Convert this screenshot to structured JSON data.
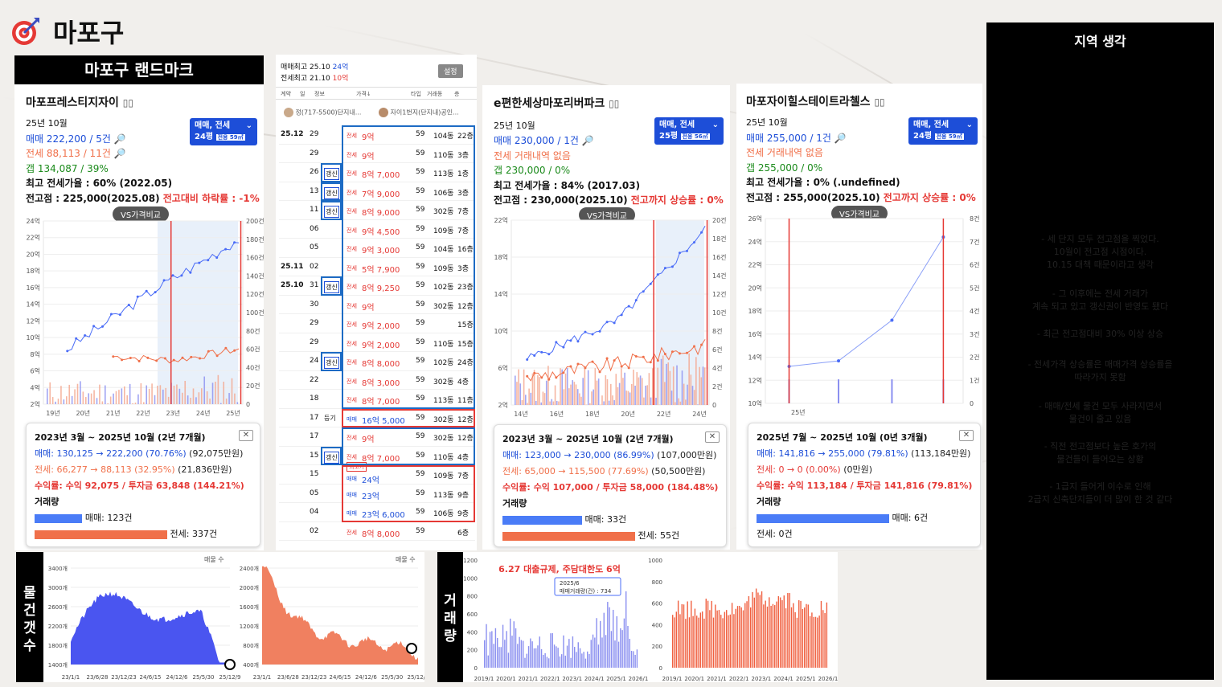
{
  "page": {
    "title": "마포구",
    "landmark_header": "마포구 랜드마크",
    "icon": "target-icon"
  },
  "colors": {
    "accent": "#1d4ed8",
    "sale": "#4a6cf7",
    "jeonse": "#f0704a",
    "up": "#e53935",
    "gap": "#1a8a1a"
  },
  "apt1": {
    "name": "마포프레스티지자이",
    "month": "25년 10월",
    "sale": "매매 222,200 / 5건",
    "jeonse": "전세 88,113 / 11건",
    "gap": "갭    134,087 / 39%",
    "max_ratio": "최고 전세가율 : 60% (2022.05)",
    "prev_high": "전고점 : 225,000(2025.08)",
    "prev_high_diff": "전고대비 하락률 : -1%",
    "selector_top": "매매, 전세",
    "selector_pyeong": "24평",
    "selector_area": "전용 59㎡",
    "vs_button": "VS가격비교",
    "y_left": [
      "24억",
      "22억",
      "20억",
      "18억",
      "16억",
      "14억",
      "12억",
      "10억",
      "8억",
      "6억",
      "4억",
      "2억"
    ],
    "y_right": [
      "200건",
      "180건",
      "160건",
      "140건",
      "120건",
      "100건",
      "80건",
      "60건",
      "40건",
      "20건",
      "0"
    ],
    "x_ticks": [
      "19년",
      "20년",
      "21년",
      "22년",
      "23년",
      "24년",
      "25년"
    ],
    "summary": {
      "period": "2023년 3월 ~ 2025년 10월 (2년 7개월)",
      "sale": "매매: 130,125 → 222,200 (70.76%)",
      "sale_diff": "(92,075만원)",
      "jeonse": "전세: 66,277 → 88,113 (32.95%)",
      "jeonse_diff": "(21,836만원)",
      "profit": "수익률: 수익 92,075 / 투자금 63,848 (144.21%)",
      "volume_label": "거래량",
      "sale_count": "매매: 123건",
      "jeonse_count": "전세: 337건",
      "sale_bar_fraction": 0.36,
      "jeonse_bar_fraction": 1.0
    }
  },
  "trades": {
    "header_line1_label": "매매최고",
    "header_line1_date": "25.10",
    "header_line1_value": "24억",
    "header_line2_label": "전세최고",
    "header_line2_date": "21.10",
    "header_line2_value": "10억",
    "settings_button": "설정",
    "columns": [
      "계약",
      "일",
      "정보",
      "가격↓",
      "타입",
      "거래동",
      "층"
    ],
    "agent1": "정(717-5500)단지내...",
    "agent2": "자이1번지(단지내)공인...",
    "rows": [
      {
        "ym": "25.12",
        "d": "29",
        "info": "",
        "kind": "전세",
        "price": "9억",
        "type": "59",
        "dong": "104동",
        "floor": "22층",
        "box": "blue"
      },
      {
        "ym": "",
        "d": "29",
        "info": "",
        "kind": "전세",
        "price": "9억",
        "type": "59",
        "dong": "110동",
        "floor": "3층",
        "box": "blue"
      },
      {
        "ym": "",
        "d": "26",
        "info": "갱신",
        "kind": "전세",
        "price": "8억 7,000",
        "type": "59",
        "dong": "113동",
        "floor": "1층",
        "box": "blue"
      },
      {
        "ym": "",
        "d": "13",
        "info": "갱신",
        "kind": "전세",
        "price": "7억 9,000",
        "type": "59",
        "dong": "106동",
        "floor": "3층",
        "box": "blue"
      },
      {
        "ym": "",
        "d": "11",
        "info": "갱신",
        "kind": "전세",
        "price": "8억 9,000",
        "type": "59",
        "dong": "302동",
        "floor": "7층",
        "box": "blue"
      },
      {
        "ym": "",
        "d": "06",
        "info": "",
        "kind": "전세",
        "price": "9억 4,500",
        "type": "59",
        "dong": "109동",
        "floor": "7층",
        "box": "blue"
      },
      {
        "ym": "",
        "d": "05",
        "info": "",
        "kind": "전세",
        "price": "9억 3,000",
        "type": "59",
        "dong": "104동",
        "floor": "16층",
        "box": "blue"
      },
      {
        "ym": "25.11",
        "d": "02",
        "info": "",
        "kind": "전세",
        "price": "5억 7,900",
        "type": "59",
        "dong": "109동",
        "floor": "3층",
        "box": "blue"
      },
      {
        "ym": "25.10",
        "d": "31",
        "info": "갱신",
        "kind": "전세",
        "price": "8억 9,250",
        "type": "59",
        "dong": "102동",
        "floor": "23층",
        "box": "blue"
      },
      {
        "ym": "",
        "d": "30",
        "info": "",
        "kind": "전세",
        "price": "9억",
        "type": "59",
        "dong": "302동",
        "floor": "12층",
        "box": "blue"
      },
      {
        "ym": "",
        "d": "29",
        "info": "",
        "kind": "전세",
        "price": "9억 2,000",
        "type": "59",
        "dong": "",
        "floor": "15층",
        "box": "blue"
      },
      {
        "ym": "",
        "d": "29",
        "info": "",
        "kind": "전세",
        "price": "9억 2,000",
        "type": "59",
        "dong": "110동",
        "floor": "15층",
        "box": "blue"
      },
      {
        "ym": "",
        "d": "24",
        "info": "갱신",
        "kind": "전세",
        "price": "8억 8,000",
        "type": "59",
        "dong": "102동",
        "floor": "24층",
        "box": "blue"
      },
      {
        "ym": "",
        "d": "22",
        "info": "",
        "kind": "전세",
        "price": "8억 3,000",
        "type": "59",
        "dong": "302동",
        "floor": "4층",
        "box": "blue"
      },
      {
        "ym": "",
        "d": "18",
        "info": "",
        "kind": "전세",
        "price": "8억 7,000",
        "type": "59",
        "dong": "113동",
        "floor": "11층",
        "box": "blue"
      },
      {
        "ym": "",
        "d": "17",
        "info": "등기",
        "kind": "매매",
        "price": "16억 5,000",
        "type": "59",
        "dong": "302동",
        "floor": "12층",
        "box": "red"
      },
      {
        "ym": "",
        "d": "17",
        "info": "",
        "kind": "전세",
        "price": "9억",
        "type": "59",
        "dong": "302동",
        "floor": "12층",
        "box": "blue2"
      },
      {
        "ym": "",
        "d": "15",
        "info": "갱신",
        "kind": "전세",
        "price": "8억 7,000",
        "type": "59",
        "dong": "110동",
        "floor": "4층",
        "box": "blue2"
      },
      {
        "ym": "",
        "d": "15",
        "info": "",
        "kind": "매매",
        "price": "24억",
        "type": "59",
        "dong": "109동",
        "floor": "7층",
        "box": "red2",
        "badge": "최고가"
      },
      {
        "ym": "",
        "d": "05",
        "info": "",
        "kind": "매매",
        "price": "23억",
        "type": "59",
        "dong": "113동",
        "floor": "9층",
        "box": "red2"
      },
      {
        "ym": "",
        "d": "04",
        "info": "",
        "kind": "매매",
        "price": "23억 6,000",
        "type": "59",
        "dong": "106동",
        "floor": "9층",
        "box": "red2"
      },
      {
        "ym": "",
        "d": "02",
        "info": "",
        "kind": "전세",
        "price": "8억 8,000",
        "type": "59",
        "dong": "",
        "floor": "6층",
        "box": ""
      }
    ]
  },
  "apt2": {
    "name": "e편한세상마포리버파크",
    "month": "25년 10월",
    "sale": "매매 230,000 / 1건",
    "jeonse": "전세 거래내역 없음",
    "gap": "갭    230,000 / 0%",
    "max_ratio": "최고 전세가율 : 84% (2017.03)",
    "prev_high": "전고점 : 230,000(2025.10)",
    "prev_high_diff": "전고까지 상승률 : 0%",
    "selector_top": "매매, 전세",
    "selector_pyeong": "25평",
    "selector_area": "전용 56㎡",
    "vs_button": "VS가격비교",
    "y_left": [
      "22억",
      "18억",
      "14억",
      "10억",
      "6억",
      "2억"
    ],
    "y_right": [
      "20건",
      "18건",
      "16건",
      "14건",
      "12건",
      "10건",
      "8건",
      "6건",
      "4건",
      "2건",
      "0"
    ],
    "x_ticks": [
      "14년",
      "16년",
      "18년",
      "20년",
      "22년",
      "24년"
    ],
    "summary": {
      "period": "2023년 3월 ~ 2025년 10월 (2년 7개월)",
      "sale": "매매: 123,000 → 230,000 (86.99%)",
      "sale_diff": "(107,000만원)",
      "jeonse": "전세: 65,000 → 115,500 (77.69%)",
      "jeonse_diff": "(50,500만원)",
      "profit": "수익률: 수익 107,000 / 투자금 58,000 (184.48%)",
      "volume_label": "거래량",
      "sale_count": "매매: 33건",
      "jeonse_count": "전세: 55건",
      "sale_bar_fraction": 0.6,
      "jeonse_bar_fraction": 1.0
    }
  },
  "apt3": {
    "name": "마포자이힐스테이트라첼스",
    "month": "25년 10월",
    "sale": "매매 255,000 / 1건",
    "jeonse": "전세 거래내역 없음",
    "gap": "갭    255,000 / 0%",
    "max_ratio": "최고 전세가율 : 0% (.undefined)",
    "prev_high": "전고점 : 255,000(2025.10)",
    "prev_high_diff": "전고까지 상승률 : 0%",
    "selector_top": "매매, 전세",
    "selector_pyeong": "24평",
    "selector_area": "전용 59㎡",
    "vs_button": "VS가격비교",
    "y_left": [
      "26억",
      "24억",
      "22억",
      "20억",
      "18억",
      "16억",
      "14억",
      "12억",
      "10억"
    ],
    "y_right": [
      "8건",
      "7건",
      "6건",
      "5건",
      "4건",
      "3건",
      "2건",
      "1건",
      "0"
    ],
    "x_ticks": [
      "25년"
    ],
    "summary": {
      "period": "2025년 7월 ~ 2025년 10월 (0년 3개월)",
      "sale": "매매: 141,816 → 255,000 (79.81%)",
      "sale_diff": "(113,184만원)",
      "jeonse": "전세: 0 → 0 (0.00%)",
      "jeonse_diff": "(0만원)",
      "profit": "수익률: 수익 113,184 / 투자금 141,816 (79.81%)",
      "volume_label": "거래량",
      "sale_count": "매매: 6건",
      "jeonse_count": "전세: 0건",
      "sale_bar_fraction": 1.0,
      "jeonse_bar_fraction": 0
    }
  },
  "listings": {
    "side_label": "물건갯수",
    "left_title": "매물 수",
    "left_y": [
      "3400개",
      "3000개",
      "2600개",
      "2200개",
      "1800개",
      "1400개"
    ],
    "left_x": [
      "23/1/1",
      "23/6/28",
      "23/12/23",
      "24/6/15",
      "24/12/6",
      "25/5/30",
      "25/12/9"
    ],
    "right_title": "매물 수",
    "right_y": [
      "2400개",
      "2000개",
      "1600개",
      "1200개",
      "800개",
      "400개"
    ],
    "right_x": [
      "23/1/1",
      "23/6/28",
      "23/12/23",
      "24/6/15",
      "24/12/6",
      "25/5/30",
      "25/12/9"
    ]
  },
  "volume": {
    "side_label": "거래량",
    "annotation": "6.27 대출규제, 주담대한도 6억",
    "tooltip_date": "2025/6",
    "tooltip_value": "매매거래량(건) : 734",
    "left_y": [
      "1200",
      "1000",
      "800",
      "600",
      "400",
      "200",
      "0"
    ],
    "left_x": [
      "2019/1",
      "2020/1",
      "2021/1",
      "2022/1",
      "2023/1",
      "2024/1",
      "2025/1",
      "2026/1"
    ],
    "right_y": [
      "1000",
      "800",
      "600",
      "400",
      "200",
      "0"
    ],
    "right_x": [
      "2019/1",
      "2020/1",
      "2021/1",
      "2022/1",
      "2023/1",
      "2024/1",
      "2025/1",
      "2026/1"
    ]
  },
  "thoughts": {
    "title": "지역 생각",
    "items": [
      "- 세 단지 모두 전고점을 찍었다.\n10월이 전고점 시점이다.\n10.15 대책 때문이라고 생각",
      "- 그 이후에는 전세 거래가\n계속 되고 있고 갱신권이 반영도 됐다",
      "- 최근 전고점대비 30% 이상 상승",
      "- 전세가격 상승률은 매매가격 상승률을\n따라가지 못함",
      "- 매매/전세 물건 모두 사라지면서\n물건이 줄고 있음",
      "- 직전 전고점보다 높은 호가의\n물건들이 들어오는 상황",
      "- 1급지 들어게 이수로 인해\n2급지 신축단지들이 더 많이 한 것 같다"
    ]
  }
}
